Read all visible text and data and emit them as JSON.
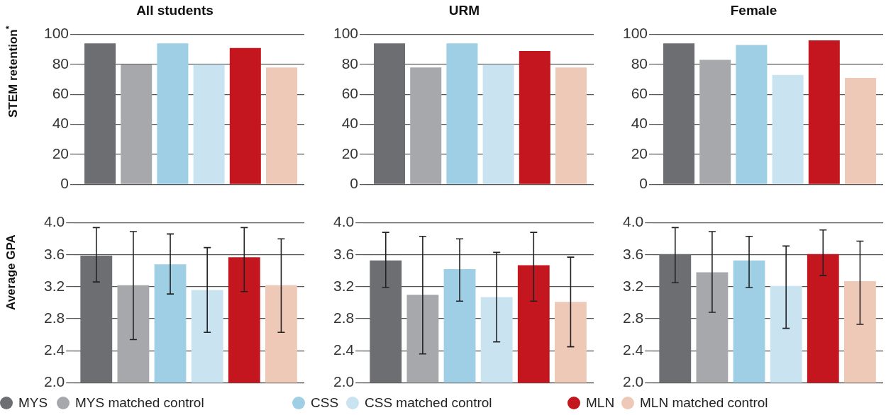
{
  "chart_data": [
    {
      "type": "bar",
      "title": "All students",
      "ylabel": "STEM retention$^{*}$",
      "categories": [
        null
      ],
      "ylim": [
        0,
        100
      ],
      "yticks": [
        0,
        20,
        40,
        60,
        80,
        100
      ],
      "grid": "y",
      "tick_labels": "y",
      "legend": "bottom",
      "series": [
        {
          "name": "MYS",
          "color": "#6d6e72",
          "values": [
            94
          ]
        },
        {
          "name": "MYS matched control",
          "color": "#a7a8ac",
          "values": [
            80
          ]
        },
        {
          "name": "CSS",
          "color": "#9fcfe5",
          "values": [
            94
          ]
        },
        {
          "name": "CSS matched control",
          "color": "#cae3f0",
          "values": [
            80
          ]
        },
        {
          "name": "MLN",
          "color": "#c4161e",
          "values": [
            91
          ]
        },
        {
          "name": "MLN matched control",
          "color": "#efc9b7",
          "values": [
            78
          ]
        }
      ]
    },
    {
      "type": "bar",
      "title": "URM",
      "categories": [
        null
      ],
      "ylim": [
        0,
        100
      ],
      "yticks": [
        0,
        20,
        40,
        60,
        80,
        100
      ],
      "grid": "y",
      "tick_labels": "y",
      "series": [
        {
          "color": "#6d6e72",
          "values": [
            94
          ]
        },
        {
          "color": "#a7a8ac",
          "values": [
            78
          ]
        },
        {
          "color": "#9fcfe5",
          "values": [
            94
          ]
        },
        {
          "color": "#cae3f0",
          "values": [
            80
          ]
        },
        {
          "color": "#c4161e",
          "values": [
            89
          ]
        },
        {
          "color": "#efc9b7",
          "values": [
            78
          ]
        }
      ]
    },
    {
      "type": "bar",
      "title": "Female",
      "categories": [
        null
      ],
      "ylim": [
        0,
        100
      ],
      "yticks": [
        0,
        20,
        40,
        60,
        80,
        100
      ],
      "grid": "y",
      "tick_labels": "y",
      "series": [
        {
          "color": "#6d6e72",
          "values": [
            94
          ]
        },
        {
          "color": "#a7a8ac",
          "values": [
            83
          ]
        },
        {
          "color": "#9fcfe5",
          "values": [
            93
          ]
        },
        {
          "color": "#cae3f0",
          "values": [
            73
          ]
        },
        {
          "color": "#c4161e",
          "values": [
            96
          ]
        },
        {
          "color": "#efc9b7",
          "values": [
            71
          ]
        }
      ]
    },
    {
      "type": "bar",
      "ylabel": "Average GPA",
      "categories": [
        null
      ],
      "ylim": [
        2,
        4
      ],
      "yticks": [
        {
          "value": 2,
          "label": "2.0"
        },
        {
          "value": 2.4,
          "label": "2.4"
        },
        {
          "value": 2.8,
          "label": "2.8"
        },
        {
          "value": 3.2,
          "label": "3.2"
        },
        {
          "value": 3.6,
          "label": "3.6"
        },
        {
          "value": 4,
          "label": "4.0"
        }
      ],
      "grid": "y",
      "tick_labels": "y",
      "series": [
        {
          "color": "#6d6e72",
          "values": [
            3.59
          ],
          "errors": [
            [
              3.26,
              3.94
            ]
          ]
        },
        {
          "color": "#a7a8ac",
          "values": [
            3.22
          ],
          "errors": [
            [
              2.54,
              3.89
            ]
          ]
        },
        {
          "color": "#9fcfe5",
          "values": [
            3.48
          ],
          "errors": [
            [
              3.11,
              3.86
            ]
          ]
        },
        {
          "color": "#cae3f0",
          "values": [
            3.16
          ],
          "errors": [
            [
              2.63,
              3.69
            ]
          ]
        },
        {
          "color": "#c4161e",
          "values": [
            3.57
          ],
          "errors": [
            [
              3.14,
              3.94
            ]
          ]
        },
        {
          "color": "#efc9b7",
          "values": [
            3.22
          ],
          "errors": [
            [
              2.63,
              3.8
            ]
          ]
        }
      ]
    },
    {
      "type": "bar",
      "categories": [
        null
      ],
      "ylim": [
        2,
        4
      ],
      "yticks": [
        {
          "value": 2,
          "label": "2.0"
        },
        {
          "value": 2.4,
          "label": "2.4"
        },
        {
          "value": 2.8,
          "label": "2.8"
        },
        {
          "value": 3.2,
          "label": "3.2"
        },
        {
          "value": 3.6,
          "label": "3.6"
        },
        {
          "value": 4,
          "label": "4.0"
        }
      ],
      "grid": "y",
      "tick_labels": "y",
      "series": [
        {
          "color": "#6d6e72",
          "values": [
            3.53
          ],
          "errors": [
            [
              3.19,
              3.88
            ]
          ]
        },
        {
          "color": "#a7a8ac",
          "values": [
            3.1
          ],
          "errors": [
            [
              2.36,
              3.83
            ]
          ]
        },
        {
          "color": "#9fcfe5",
          "values": [
            3.42
          ],
          "errors": [
            [
              3.02,
              3.8
            ]
          ]
        },
        {
          "color": "#cae3f0",
          "values": [
            3.07
          ],
          "errors": [
            [
              2.51,
              3.63
            ]
          ]
        },
        {
          "color": "#c4161e",
          "values": [
            3.47
          ],
          "errors": [
            [
              3.02,
              3.88
            ]
          ]
        },
        {
          "color": "#efc9b7",
          "values": [
            3.01
          ],
          "errors": [
            [
              2.45,
              3.57
            ]
          ]
        }
      ]
    },
    {
      "type": "bar",
      "categories": [
        null
      ],
      "ylim": [
        2,
        4
      ],
      "yticks": [
        {
          "value": 2,
          "label": "2.0"
        },
        {
          "value": 2.4,
          "label": "2.4"
        },
        {
          "value": 2.8,
          "label": "2.8"
        },
        {
          "value": 3.2,
          "label": "3.2"
        },
        {
          "value": 3.6,
          "label": "3.6"
        },
        {
          "value": 4,
          "label": "4.0"
        }
      ],
      "grid": "y",
      "tick_labels": "y",
      "series": [
        {
          "color": "#6d6e72",
          "values": [
            3.61
          ],
          "errors": [
            [
              3.25,
              3.94
            ]
          ]
        },
        {
          "color": "#a7a8ac",
          "values": [
            3.38
          ],
          "errors": [
            [
              2.88,
              3.89
            ]
          ]
        },
        {
          "color": "#9fcfe5",
          "values": [
            3.53
          ],
          "errors": [
            [
              3.19,
              3.83
            ]
          ]
        },
        {
          "color": "#cae3f0",
          "values": [
            3.21
          ],
          "errors": [
            [
              2.68,
              3.71
            ]
          ]
        },
        {
          "color": "#c4161e",
          "values": [
            3.61
          ],
          "errors": [
            [
              3.34,
              3.91
            ]
          ]
        },
        {
          "color": "#efc9b7",
          "values": [
            3.27
          ],
          "errors": [
            [
              2.73,
              3.77
            ]
          ]
        }
      ]
    }
  ]
}
